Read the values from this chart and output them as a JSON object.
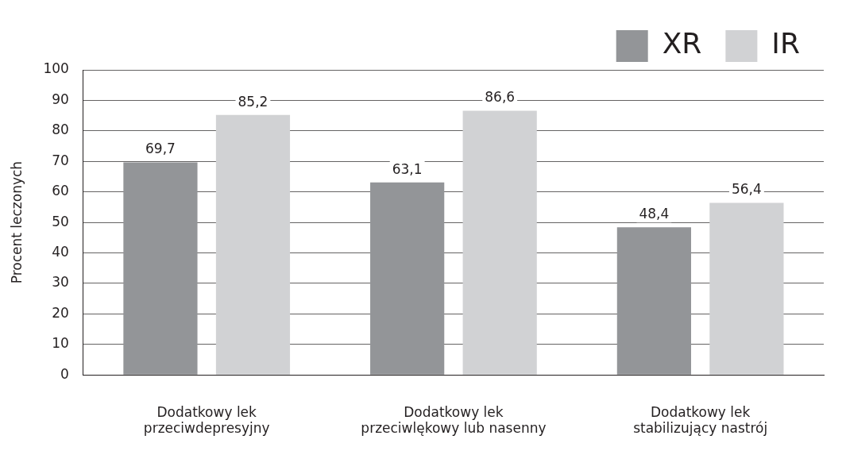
{
  "chart_data": {
    "type": "bar",
    "ylabel": "Procent leczonych",
    "categories": [
      "Dodatkowy lek\nprzeciwdepresyjny",
      "Dodatkowy lek\nprzeciwlękowy lub nasenny",
      "Dodatkowy lek\nstabilizujący nastrój"
    ],
    "series": [
      {
        "name": "XR",
        "color": "#939598",
        "values": [
          69.7,
          63.1,
          48.4
        ],
        "value_labels": [
          "69,7",
          "63,1",
          "48,4"
        ]
      },
      {
        "name": "IR",
        "color": "#d1d2d4",
        "values": [
          85.2,
          86.6,
          56.4
        ],
        "value_labels": [
          "85,2",
          "86,6",
          "56,4"
        ]
      }
    ],
    "ylim": [
      0,
      100
    ],
    "yticks": [
      0,
      10,
      20,
      30,
      40,
      50,
      60,
      70,
      80,
      90,
      100
    ],
    "grid": "y",
    "legend": "top right"
  }
}
